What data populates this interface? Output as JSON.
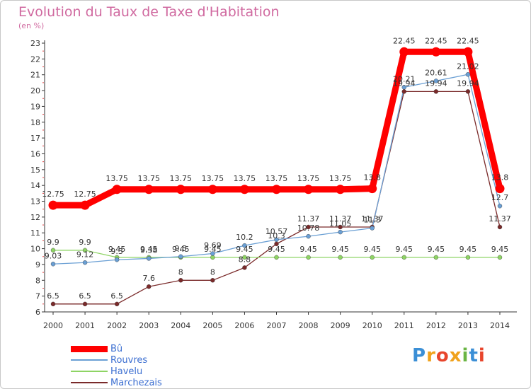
{
  "title": "Evolution du Taux de Taxe d'Habitation",
  "subtitle": "(en %)",
  "logo_text": "Proxiti",
  "colors": {
    "title": "#d06aa0",
    "axis": "#333333",
    "ticks_y": "#e04040",
    "legend_text": "#3c6fd1"
  },
  "chart_data": {
    "type": "line",
    "title": "Evolution du Taux de Taxe d'Habitation",
    "ylabel": "(en %)",
    "xlabel": "",
    "x": [
      "2000",
      "2001",
      "2002",
      "2003",
      "2004",
      "2005",
      "2006",
      "2007",
      "2008",
      "2009",
      "2010",
      "2011",
      "2012",
      "2013",
      "2014"
    ],
    "ylim": [
      6,
      23
    ],
    "yticks": [
      6,
      7,
      8,
      9,
      10,
      11,
      12,
      13,
      14,
      15,
      16,
      17,
      18,
      19,
      20,
      21,
      22,
      23
    ],
    "grid": false,
    "legend_position": "bottom-left",
    "series": [
      {
        "name": "Bû",
        "color": "#ff0000",
        "values": [
          12.75,
          12.75,
          13.75,
          13.75,
          13.75,
          13.75,
          13.75,
          13.75,
          13.75,
          13.75,
          13.8,
          22.45,
          22.45,
          22.45,
          13.8
        ],
        "labels": [
          "12.75",
          "12.75",
          "13.75",
          "13.75",
          "13.75",
          "13.75",
          "13.75",
          "13.75",
          "13.75",
          "13.75",
          "13.8",
          "22.45",
          "22.45",
          "22.45",
          "13.8"
        ]
      },
      {
        "name": "Rouvres",
        "color": "#6a9fd4",
        "values": [
          9.03,
          9.12,
          9.3,
          9.38,
          9.5,
          9.69,
          10.2,
          10.57,
          10.78,
          11.05,
          11.3,
          20.21,
          20.61,
          21.02,
          12.7
        ],
        "labels": [
          "9.03",
          "9.12",
          "9.3",
          "9.38",
          "9.5",
          "9.69",
          "10.2",
          "10.57",
          "10.78",
          "11.05",
          "11.3",
          "20.21",
          "20.61",
          "21.02",
          "12.7"
        ]
      },
      {
        "name": "Havelu",
        "color": "#8ed464",
        "values": [
          9.9,
          9.9,
          9.45,
          9.45,
          9.45,
          9.45,
          9.45,
          9.45,
          9.45,
          9.45,
          9.45,
          9.45,
          9.45,
          9.45,
          9.45
        ],
        "labels": [
          "9.9",
          "9.9",
          "9.45",
          "9.45",
          "9.45",
          "9.45",
          "9.45",
          "9.45",
          "9.45",
          "9.45",
          "9.45",
          "9.45",
          "9.45",
          "9.45",
          "9.45"
        ]
      },
      {
        "name": "Marchezais",
        "color": "#7a2a2a",
        "values": [
          6.5,
          6.5,
          6.5,
          7.6,
          8,
          8,
          8.8,
          10.3,
          11.37,
          11.37,
          11.37,
          19.94,
          19.94,
          19.94,
          11.37
        ],
        "labels": [
          "6.5",
          "6.5",
          "6.5",
          "7.6",
          "8",
          "8",
          "8.8",
          "10.3",
          "11.37",
          "11.37",
          "11.37",
          "19.94",
          "19.94",
          "19.94",
          "11.37"
        ]
      }
    ]
  }
}
